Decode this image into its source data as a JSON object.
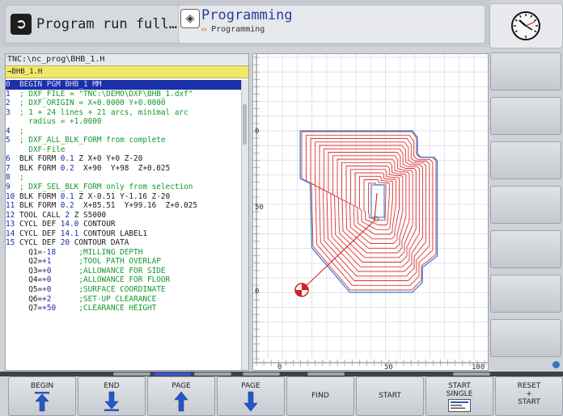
{
  "header": {
    "mode_run_label": "Program run full…",
    "mode_prog_label": "Programming",
    "mode_prog_sub": "Programming",
    "mode_run_icon": "arrow-right-icon",
    "mode_prog_icon": "programming-icon",
    "clock_icon": "clock-icon"
  },
  "program": {
    "path": "TNC:\\nc_prog\\BHB_1.H",
    "file_tab": "→BHB_1.H",
    "lines": [
      {
        "num": "0",
        "parts": [
          {
            "t": "  BEGIN PGM BHB_1 MM",
            "c": "c-text"
          }
        ],
        "highlight": true
      },
      {
        "num": "1",
        "parts": [
          {
            "t": "  ; DXF_FILE = \"TNC:\\DEMO\\DXF\\BHB_1.dxf\"",
            "c": "c-green"
          }
        ]
      },
      {
        "num": "2",
        "parts": [
          {
            "t": "  ; DXF_ORIGIN = X+0.0000 Y+0.0000",
            "c": "c-green"
          }
        ]
      },
      {
        "num": "3",
        "parts": [
          {
            "t": "  ; 1 + 24 lines + 21 arcs, minimal arc",
            "c": "c-green"
          }
        ]
      },
      {
        "num": "",
        "parts": [
          {
            "t": "     radius = +1.0000",
            "c": "c-green"
          }
        ]
      },
      {
        "num": "4",
        "parts": [
          {
            "t": "  ;",
            "c": "c-green"
          }
        ]
      },
      {
        "num": "5",
        "parts": [
          {
            "t": "  ; DXF_ALL_BLK_FORM from complete",
            "c": "c-green"
          }
        ]
      },
      {
        "num": "",
        "parts": [
          {
            "t": "     DXF-File",
            "c": "c-green"
          }
        ]
      },
      {
        "num": "6",
        "parts": [
          {
            "t": "  BLK FORM ",
            "c": "c-text"
          },
          {
            "t": "0.1",
            "c": "c-blue"
          },
          {
            "t": " Z X+0 Y+0 Z-20",
            "c": "c-text"
          }
        ]
      },
      {
        "num": "7",
        "parts": [
          {
            "t": "  BLK FORM ",
            "c": "c-text"
          },
          {
            "t": "0.2",
            "c": "c-blue"
          },
          {
            "t": "  X+90  Y+98  Z+0.025",
            "c": "c-text"
          }
        ]
      },
      {
        "num": "8",
        "parts": [
          {
            "t": "  ;",
            "c": "c-green"
          }
        ]
      },
      {
        "num": "9",
        "parts": [
          {
            "t": "  ; DXF_SEL_BLK_FORM only from selection",
            "c": "c-green"
          }
        ]
      },
      {
        "num": "10",
        "parts": [
          {
            "t": " BLK FORM ",
            "c": "c-text"
          },
          {
            "t": "0.1",
            "c": "c-blue"
          },
          {
            "t": " Z X-0.51 Y-1.16 Z-20",
            "c": "c-text"
          }
        ]
      },
      {
        "num": "11",
        "parts": [
          {
            "t": " BLK FORM ",
            "c": "c-text"
          },
          {
            "t": "0.2",
            "c": "c-blue"
          },
          {
            "t": "  X+85.51  Y+99.16  Z+0.025",
            "c": "c-text"
          }
        ]
      },
      {
        "num": "12",
        "parts": [
          {
            "t": " TOOL CALL ",
            "c": "c-text"
          },
          {
            "t": "2",
            "c": "c-blue"
          },
          {
            "t": " Z S5000",
            "c": "c-text"
          }
        ]
      },
      {
        "num": "13",
        "parts": [
          {
            "t": " CYCL DEF ",
            "c": "c-text"
          },
          {
            "t": "14.0",
            "c": "c-blue"
          },
          {
            "t": " CONTOUR",
            "c": "c-text"
          }
        ]
      },
      {
        "num": "14",
        "parts": [
          {
            "t": " CYCL DEF ",
            "c": "c-text"
          },
          {
            "t": "14.1",
            "c": "c-blue"
          },
          {
            "t": " CONTOUR LABEL1",
            "c": "c-text"
          }
        ]
      },
      {
        "num": "15",
        "parts": [
          {
            "t": " CYCL DEF ",
            "c": "c-text"
          },
          {
            "t": "20",
            "c": "c-blue"
          },
          {
            "t": " CONTOUR DATA",
            "c": "c-text"
          }
        ]
      },
      {
        "num": "",
        "parts": [
          {
            "t": "     Q1=",
            "c": "c-text"
          },
          {
            "t": "-18",
            "c": "c-blue"
          },
          {
            "t": "     ;MILLING DEPTH",
            "c": "c-green"
          }
        ]
      },
      {
        "num": "",
        "parts": [
          {
            "t": "     Q2=",
            "c": "c-text"
          },
          {
            "t": "+1",
            "c": "c-blue"
          },
          {
            "t": "      ;TOOL PATH OVERLAP",
            "c": "c-green"
          }
        ]
      },
      {
        "num": "",
        "parts": [
          {
            "t": "     Q3=",
            "c": "c-text"
          },
          {
            "t": "+0",
            "c": "c-blue"
          },
          {
            "t": "      ;ALLOWANCE FOR SIDE",
            "c": "c-green"
          }
        ]
      },
      {
        "num": "",
        "parts": [
          {
            "t": "     Q4=",
            "c": "c-text"
          },
          {
            "t": "+0",
            "c": "c-blue"
          },
          {
            "t": "      ;ALLOWANCE FOR FLOOR",
            "c": "c-green"
          }
        ]
      },
      {
        "num": "",
        "parts": [
          {
            "t": "     Q5=",
            "c": "c-text"
          },
          {
            "t": "+0",
            "c": "c-blue"
          },
          {
            "t": "      ;SURFACE COORDINATE",
            "c": "c-green"
          }
        ]
      },
      {
        "num": "",
        "parts": [
          {
            "t": "     Q6=",
            "c": "c-text"
          },
          {
            "t": "+2",
            "c": "c-blue"
          },
          {
            "t": "      ;SET-UP CLEARANCE",
            "c": "c-green"
          }
        ]
      },
      {
        "num": "",
        "parts": [
          {
            "t": "     Q7=",
            "c": "c-text"
          },
          {
            "t": "+50",
            "c": "c-blue"
          },
          {
            "t": "     ;CLEARANCE HEIGHT",
            "c": "c-green"
          }
        ]
      }
    ]
  },
  "graphics": {
    "ruler_labels_left": [
      "0",
      "50",
      "0"
    ],
    "ruler_labels_bottom": [
      "0",
      "50",
      "100"
    ],
    "outline_color": "#3f8fe0",
    "path_color": "#e02020",
    "tool_icon": "tool-position-icon"
  },
  "softkeys": {
    "bottom": [
      {
        "label": "BEGIN",
        "icon": "arrow-up-begin-icon"
      },
      {
        "label": "END",
        "icon": "arrow-down-end-icon"
      },
      {
        "label": "PAGE",
        "icon": "arrow-up-icon"
      },
      {
        "label": "PAGE",
        "icon": "arrow-down-icon"
      },
      {
        "label": "FIND",
        "icon": ""
      },
      {
        "label": "START",
        "icon": ""
      },
      {
        "label": "START\nSINGLE",
        "icon": "single-block-icon"
      },
      {
        "label": "RESET\n+\nSTART",
        "icon": ""
      }
    ],
    "side_count": 7
  },
  "colors": {
    "highlight": "#1b2fa8",
    "comment": "#149a28",
    "number": "#1a2ab0",
    "file_tab": "#f0e86a"
  }
}
